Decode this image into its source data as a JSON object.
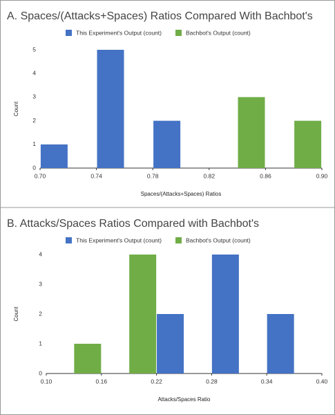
{
  "chart_data": [
    {
      "type": "bar",
      "title": "A. Spaces/(Attacks+Spaces) Ratios Compared With Bachbot's",
      "x_label": "Spaces/(Attacks+Spaces) Ratios",
      "y_label": "Count",
      "series": [
        {
          "name": "This Experiment's Output (count)",
          "color": "#4472c4",
          "x": [
            0.71,
            0.75,
            0.79
          ],
          "values": [
            1,
            5,
            2
          ]
        },
        {
          "name": "Bachbot's Output (count)",
          "color": "#70ad47",
          "x": [
            0.85,
            0.89
          ],
          "values": [
            3,
            2
          ]
        }
      ],
      "xlim": [
        0.7,
        0.9
      ],
      "xticks": [
        {
          "value": 0.7,
          "label": "0.70"
        },
        0.74,
        0.78,
        0.82,
        0.86,
        {
          "value": 0.9,
          "label": "0.90"
        }
      ],
      "ylim": [
        0,
        5
      ],
      "yticks": [
        0,
        1,
        2,
        3,
        4,
        5
      ],
      "legend": "top"
    },
    {
      "type": "bar",
      "title": "B. Attacks/Spaces Ratios Compared with Bachbot's",
      "x_label": "Attacks/Spaces Ratio",
      "y_label": "Count",
      "series": [
        {
          "name": "This Experiment's Output (count)",
          "color": "#4472c4",
          "x": [
            0.235,
            0.295,
            0.355
          ],
          "values": [
            2,
            4,
            2
          ]
        },
        {
          "name": "Bachbot's Output (count)",
          "color": "#70ad47",
          "x": [
            0.145,
            0.205
          ],
          "values": [
            1,
            4
          ]
        }
      ],
      "xlim": [
        0.1,
        0.4
      ],
      "xticks": [
        {
          "value": 0.1,
          "label": "0.10"
        },
        0.16,
        0.22,
        0.28,
        0.34,
        {
          "value": 0.4,
          "label": "0.40"
        }
      ],
      "ylim": [
        0,
        4
      ],
      "yticks": [
        0,
        1,
        2,
        3,
        4
      ],
      "legend": "top"
    }
  ]
}
